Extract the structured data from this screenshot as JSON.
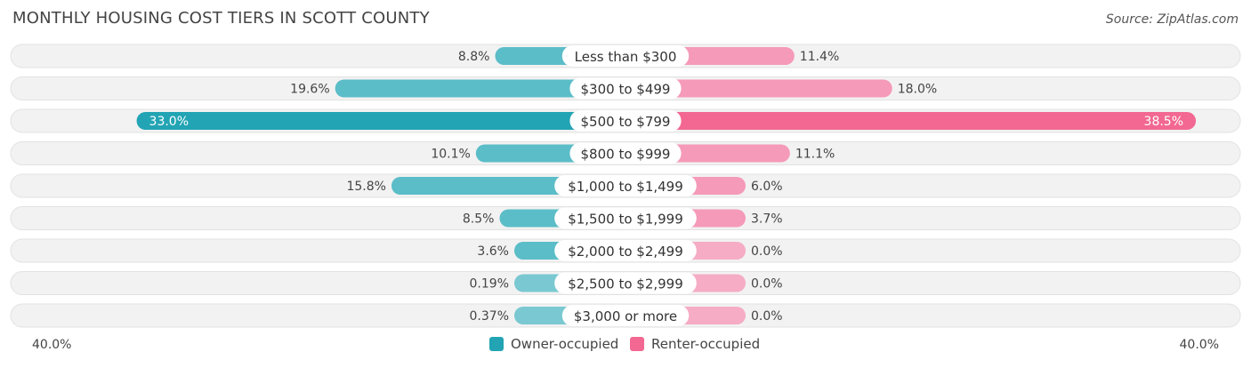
{
  "header": {
    "title": "MONTHLY HOUSING COST TIERS IN SCOTT COUNTY",
    "source": "Source: ZipAtlas.com"
  },
  "axis": {
    "left_label": "40.0%",
    "right_label": "40.0%"
  },
  "legend": {
    "owner_label": "Owner-occupied",
    "renter_label": "Renter-occupied"
  },
  "colors": {
    "owner": "#5bbdc8",
    "owner_strong": "#22a4b4",
    "renter": "#f59ab8",
    "renter_strong": "#f26892",
    "track": "#f2f2f2"
  },
  "chart_data": {
    "type": "bar",
    "orientation": "diverging-horizontal",
    "xlim": [
      -40,
      40
    ],
    "categories": [
      "Less than $300",
      "$300 to $499",
      "$500 to $799",
      "$800 to $999",
      "$1,000 to $1,499",
      "$1,500 to $1,999",
      "$2,000 to $2,499",
      "$2,500 to $2,999",
      "$3,000 or more"
    ],
    "series": [
      {
        "name": "Owner-occupied",
        "values": [
          8.8,
          19.6,
          33.0,
          10.1,
          15.8,
          8.5,
          3.6,
          0.19,
          0.37
        ],
        "labels": [
          "8.8%",
          "19.6%",
          "33.0%",
          "10.1%",
          "15.8%",
          "8.5%",
          "3.6%",
          "0.19%",
          "0.37%"
        ]
      },
      {
        "name": "Renter-occupied",
        "values": [
          11.4,
          18.0,
          38.5,
          11.1,
          6.0,
          3.7,
          0.0,
          0.0,
          0.0
        ],
        "labels": [
          "11.4%",
          "18.0%",
          "38.5%",
          "11.1%",
          "6.0%",
          "3.7%",
          "0.0%",
          "0.0%",
          "0.0%"
        ]
      }
    ]
  }
}
